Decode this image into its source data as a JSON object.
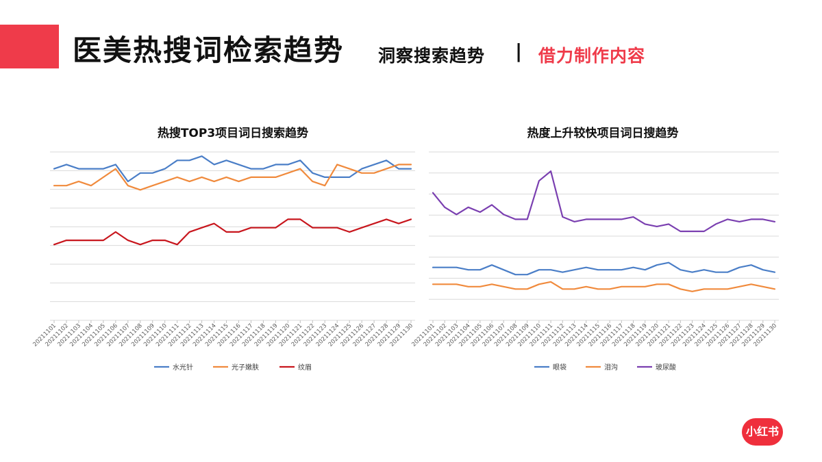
{
  "header": {
    "title_main": "医美热搜词检索趋势",
    "title_sub": "洞察搜索趋势",
    "separator": "|",
    "title_highlight": "借力制作内容",
    "accent_color": "#ef3b4a"
  },
  "logo": {
    "text": "小红书",
    "color": "#ef2f3c"
  },
  "chart_data": [
    {
      "type": "line",
      "title": "热搜TOP3项目词日搜索趋势",
      "xlabel": "",
      "ylabel": "",
      "grid": true,
      "legend": "bottom",
      "ylim": [
        0,
        8
      ],
      "x": [
        "20211101",
        "20211102",
        "20211103",
        "20211104",
        "20211105",
        "20211106",
        "20211107",
        "20211108",
        "20211109",
        "20211110",
        "20211111",
        "20211112",
        "20211113",
        "20211114",
        "20211115",
        "20211116",
        "20211117",
        "20211118",
        "20211119",
        "20211120",
        "20211121",
        "20211122",
        "20211123",
        "20211124",
        "20211125",
        "20211126",
        "20211127",
        "20211128",
        "20211129",
        "20211130"
      ],
      "series": [
        {
          "name": "水光针",
          "color": "#4a7ec7",
          "values": [
            7.2,
            7.4,
            7.2,
            7.2,
            7.2,
            7.4,
            6.6,
            7.0,
            7.0,
            7.2,
            7.6,
            7.6,
            7.8,
            7.4,
            7.6,
            7.4,
            7.2,
            7.2,
            7.4,
            7.4,
            7.6,
            7.0,
            6.8,
            6.8,
            6.8,
            7.2,
            7.4,
            7.6,
            7.2,
            7.2
          ]
        },
        {
          "name": "光子嫩肤",
          "color": "#f08a3c",
          "values": [
            6.4,
            6.4,
            6.6,
            6.4,
            6.8,
            7.2,
            6.4,
            6.2,
            6.4,
            6.6,
            6.8,
            6.6,
            6.8,
            6.6,
            6.8,
            6.6,
            6.8,
            6.8,
            6.8,
            7.0,
            7.2,
            6.6,
            6.4,
            7.4,
            7.2,
            7.0,
            7.0,
            7.2,
            7.4,
            7.4
          ]
        },
        {
          "name": "纹眉",
          "color": "#c8161d",
          "values": [
            3.6,
            3.8,
            3.8,
            3.8,
            3.8,
            4.2,
            3.8,
            3.6,
            3.8,
            3.8,
            3.6,
            4.2,
            4.4,
            4.6,
            4.2,
            4.2,
            4.4,
            4.4,
            4.4,
            4.8,
            4.8,
            4.4,
            4.4,
            4.4,
            4.2,
            4.4,
            4.6,
            4.8,
            4.6,
            4.8
          ]
        }
      ]
    },
    {
      "type": "line",
      "title": "热度上升较快项目词日搜趋势",
      "xlabel": "",
      "ylabel": "",
      "grid": true,
      "legend": "bottom",
      "ylim": [
        0,
        7
      ],
      "x": [
        "20211101",
        "20211102",
        "20211103",
        "20211104",
        "20211105",
        "20211106",
        "20211107",
        "20211108",
        "20211109",
        "20211110",
        "20211111",
        "20211112",
        "20211113",
        "20211114",
        "20211115",
        "20211116",
        "20211117",
        "20211118",
        "20211119",
        "20211120",
        "20211121",
        "20211122",
        "20211123",
        "20211124",
        "20211125",
        "20211126",
        "20211127",
        "20211128",
        "20211129",
        "20211130"
      ],
      "series": [
        {
          "name": "眼袋",
          "color": "#4a7ec7",
          "values": [
            2.2,
            2.2,
            2.2,
            2.1,
            2.1,
            2.3,
            2.1,
            1.9,
            1.9,
            2.1,
            2.1,
            2.0,
            2.1,
            2.2,
            2.1,
            2.1,
            2.1,
            2.2,
            2.1,
            2.3,
            2.4,
            2.1,
            2.0,
            2.1,
            2.0,
            2.0,
            2.2,
            2.3,
            2.1,
            2.0
          ]
        },
        {
          "name": "泪沟",
          "color": "#f08a3c",
          "values": [
            1.5,
            1.5,
            1.5,
            1.4,
            1.4,
            1.5,
            1.4,
            1.3,
            1.3,
            1.5,
            1.6,
            1.3,
            1.3,
            1.4,
            1.3,
            1.3,
            1.4,
            1.4,
            1.4,
            1.5,
            1.5,
            1.3,
            1.2,
            1.3,
            1.3,
            1.3,
            1.4,
            1.5,
            1.4,
            1.3
          ]
        },
        {
          "name": "玻尿酸",
          "color": "#7a3fb0",
          "values": [
            5.3,
            4.7,
            4.4,
            4.7,
            4.5,
            4.8,
            4.4,
            4.2,
            4.2,
            5.8,
            6.2,
            4.3,
            4.1,
            4.2,
            4.2,
            4.2,
            4.2,
            4.3,
            4.0,
            3.9,
            4.0,
            3.7,
            3.7,
            3.7,
            4.0,
            4.2,
            4.1,
            4.2,
            4.2,
            4.1
          ]
        }
      ]
    }
  ]
}
